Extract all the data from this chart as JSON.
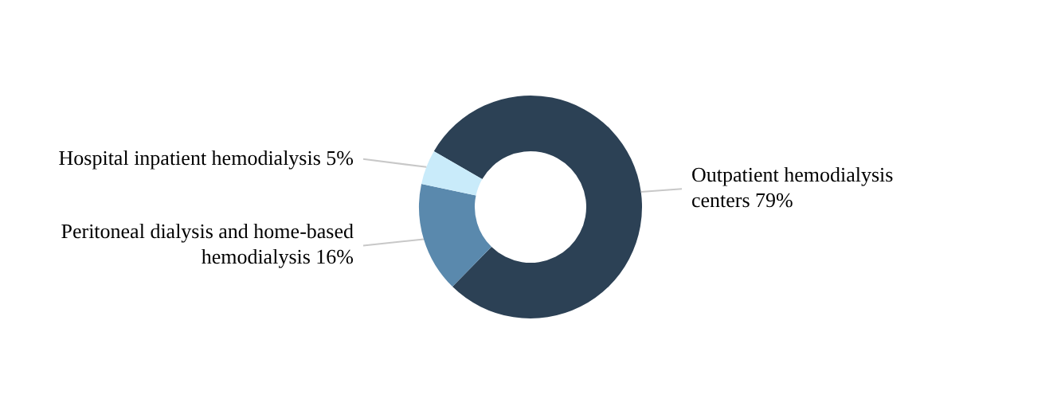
{
  "chart_data": {
    "type": "donut",
    "categories": [
      "Outpatient hemodialysis centers",
      "Peritoneal dialysis and home-based hemodialysis",
      "Hospital inpatient hemodialysis"
    ],
    "values": [
      79,
      16,
      5
    ],
    "value_labels": [
      "79%",
      "16%",
      "5%"
    ],
    "colors": [
      "#2c4155",
      "#5a89ad",
      "#c9ebfa"
    ]
  }
}
